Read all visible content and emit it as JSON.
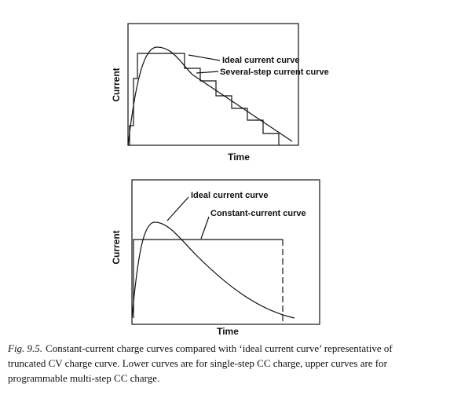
{
  "figures": [
    {
      "y_label": "Current",
      "x_label": "Time",
      "annotations": [
        "Ideal current curve",
        "Several-step current curve"
      ]
    },
    {
      "y_label": "Current",
      "x_label": "Time",
      "annotations": [
        "Ideal current curve",
        "Constant-current curve"
      ]
    }
  ],
  "caption": {
    "fig_label": "Fig. 9.5.",
    "lines": [
      "Constant-current charge curves compared with ‘ideal current curve’ representative of",
      "truncated CV charge curve. Lower curves are for single-step CC charge, upper curves are for",
      "programmable multi-step CC charge."
    ]
  }
}
